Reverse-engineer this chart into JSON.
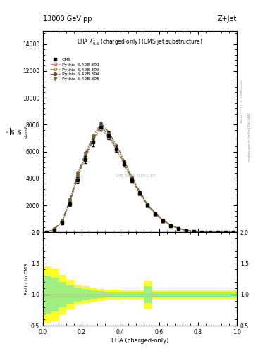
{
  "title_top": "13000 GeV pp",
  "title_right": "Z+Jet",
  "plot_title": "LHA $\\lambda^{1}_{0.5}$ (charged only) (CMS jet substructure)",
  "xlabel": "LHA (charged-only)",
  "ylabel_ratio": "Ratio to CMS",
  "watermark": "CMS_2021_I1954187",
  "right_label1": "Rivet 3.1.10, ≥ 3.2M events",
  "right_label2": "mcplots.cern.ch [arXiv:1306.3436]",
  "lha_bins": [
    0.0,
    0.04,
    0.08,
    0.12,
    0.16,
    0.2,
    0.24,
    0.28,
    0.32,
    0.36,
    0.4,
    0.44,
    0.48,
    0.52,
    0.56,
    0.6,
    0.64,
    0.68,
    0.72,
    0.76,
    0.8,
    0.84,
    0.88,
    0.92,
    0.96,
    1.0
  ],
  "cms_values": [
    10,
    180,
    700,
    2100,
    3900,
    5400,
    6700,
    7800,
    7200,
    6200,
    5100,
    3900,
    2900,
    2000,
    1350,
    850,
    500,
    280,
    140,
    65,
    28,
    12,
    5,
    2,
    1
  ],
  "cms_errors": [
    5,
    60,
    100,
    150,
    200,
    250,
    280,
    280,
    270,
    230,
    200,
    160,
    130,
    100,
    80,
    60,
    45,
    30,
    20,
    13,
    8,
    5,
    3,
    1.5,
    1
  ],
  "p391_values": [
    12,
    220,
    780,
    2200,
    4100,
    5550,
    6850,
    7700,
    7050,
    6080,
    5000,
    3820,
    2820,
    1950,
    1320,
    820,
    480,
    265,
    132,
    62,
    26,
    11,
    4.5,
    1.7,
    0.6
  ],
  "p393_values": [
    14,
    250,
    850,
    2350,
    4300,
    5750,
    7050,
    7950,
    7300,
    6300,
    5200,
    3980,
    2950,
    2050,
    1400,
    880,
    520,
    290,
    145,
    68,
    29,
    12,
    5,
    2,
    0.7
  ],
  "p394_values": [
    15,
    270,
    900,
    2450,
    4450,
    5900,
    7200,
    8100,
    7450,
    6450,
    5320,
    4080,
    3020,
    2100,
    1440,
    910,
    540,
    300,
    152,
    72,
    31,
    13,
    5.5,
    2.1,
    0.8
  ],
  "p395_values": [
    13,
    240,
    830,
    2300,
    4200,
    5650,
    6950,
    7850,
    7200,
    6200,
    5120,
    3920,
    2900,
    2010,
    1370,
    860,
    510,
    282,
    141,
    66,
    28,
    11.5,
    4.8,
    1.85,
    0.65
  ],
  "ratio_yellow_lo": [
    0.55,
    0.58,
    0.68,
    0.76,
    0.84,
    0.87,
    0.89,
    0.91,
    0.92,
    0.92,
    0.93,
    0.93,
    0.93,
    0.78,
    0.93,
    0.93,
    0.93,
    0.93,
    0.93,
    0.93,
    0.93,
    0.93,
    0.93,
    0.93,
    0.93
  ],
  "ratio_yellow_hi": [
    1.45,
    1.42,
    1.32,
    1.24,
    1.16,
    1.13,
    1.11,
    1.09,
    1.08,
    1.08,
    1.07,
    1.07,
    1.07,
    1.22,
    1.07,
    1.07,
    1.07,
    1.07,
    1.07,
    1.07,
    1.07,
    1.07,
    1.07,
    1.07,
    1.07
  ],
  "ratio_green_lo": [
    0.7,
    0.73,
    0.8,
    0.85,
    0.89,
    0.91,
    0.93,
    0.94,
    0.95,
    0.95,
    0.95,
    0.95,
    0.95,
    0.86,
    0.95,
    0.95,
    0.95,
    0.95,
    0.95,
    0.95,
    0.95,
    0.95,
    0.95,
    0.95,
    0.95
  ],
  "ratio_green_hi": [
    1.3,
    1.27,
    1.2,
    1.15,
    1.11,
    1.09,
    1.07,
    1.06,
    1.05,
    1.05,
    1.05,
    1.05,
    1.05,
    1.14,
    1.05,
    1.05,
    1.05,
    1.05,
    1.05,
    1.05,
    1.05,
    1.05,
    1.05,
    1.05,
    1.05
  ],
  "color_391": "#c8808080",
  "color_393": "#a0906000",
  "color_394": "#80503000",
  "color_395": "#406020",
  "ylim_main": [
    0,
    15000
  ],
  "ylim_ratio": [
    0.5,
    2.0
  ],
  "yticks_main": [
    0,
    2000,
    4000,
    6000,
    8000,
    10000,
    12000,
    14000
  ],
  "yticks_ratio": [
    0.5,
    1.0,
    1.5,
    2.0
  ],
  "bg_color": "#ffffff"
}
